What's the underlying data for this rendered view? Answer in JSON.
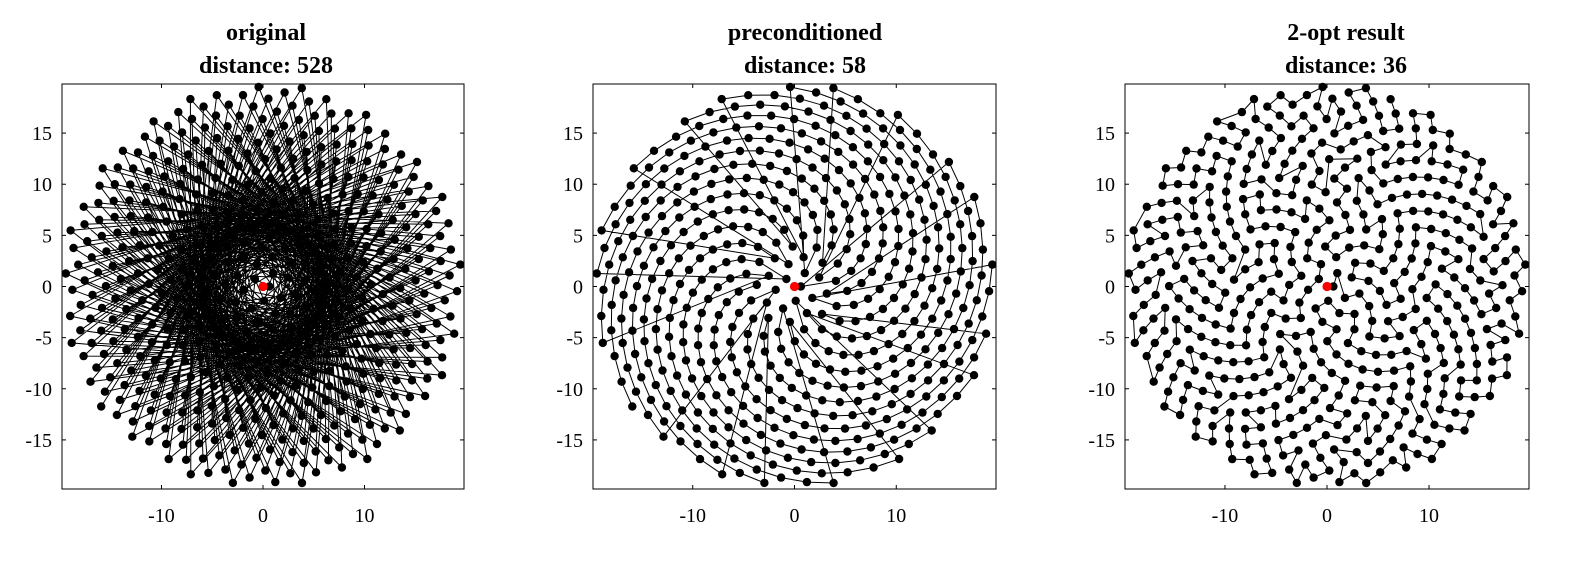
{
  "chart_data": [
    {
      "type": "scatter",
      "title": "original",
      "subtitle": "distance: 528",
      "xlim": [
        -19.8,
        19.8
      ],
      "ylim": [
        -19.8,
        19.8
      ],
      "xticks": [
        -10,
        0,
        10
      ],
      "yticks": [
        15,
        10,
        5,
        0,
        -5,
        -10,
        -15
      ],
      "xtick_labels": [
        "-10",
        "0",
        "10"
      ],
      "ytick_labels": [
        "15",
        "10",
        "5",
        "0",
        "-5",
        "-10",
        "-15"
      ],
      "grid": false,
      "points": "sunflower spiral, 500 cities, radius ~19.8",
      "route": "visit order by index",
      "start_point": [
        0,
        0
      ],
      "colors": {
        "route": "#000000",
        "cities": "#000000",
        "start": "#ff0000"
      }
    },
    {
      "type": "scatter",
      "title": "preconditioned",
      "subtitle": "distance: 58",
      "xlim": [
        -19.8,
        19.8
      ],
      "ylim": [
        -19.8,
        19.8
      ],
      "xticks": [
        -10,
        0,
        10
      ],
      "yticks": [
        15,
        10,
        5,
        0,
        -5,
        -10,
        -15
      ],
      "xtick_labels": [
        "-10",
        "0",
        "10"
      ],
      "ytick_labels": [
        "15",
        "10",
        "5",
        "0",
        "-5",
        "-10",
        "-15"
      ],
      "grid": false,
      "points": "sunflower spiral, 500 cities, radius ~19.8",
      "route": "spiral-arm order with long jumps",
      "start_point": [
        0,
        0
      ],
      "colors": {
        "route": "#000000",
        "cities": "#000000",
        "start": "#ff0000"
      }
    },
    {
      "type": "scatter",
      "title": "2-opt result",
      "subtitle": "distance: 36",
      "xlim": [
        -19.8,
        19.8
      ],
      "ylim": [
        -19.8,
        19.8
      ],
      "xticks": [
        -10,
        0,
        10
      ],
      "yticks": [
        15,
        10,
        5,
        0,
        -5,
        -10,
        -15
      ],
      "xtick_labels": [
        "-10",
        "0",
        "10"
      ],
      "ytick_labels": [
        "15",
        "10",
        "5",
        "0",
        "-5",
        "-10",
        "-15"
      ],
      "grid": false,
      "points": "sunflower spiral, 500 cities, radius ~19.8",
      "route": "nearest-neighbour tour improved by 2-opt",
      "start_point": [
        0,
        0
      ],
      "colors": {
        "route": "#000000",
        "cities": "#000000",
        "start": "#ff0000"
      }
    }
  ]
}
